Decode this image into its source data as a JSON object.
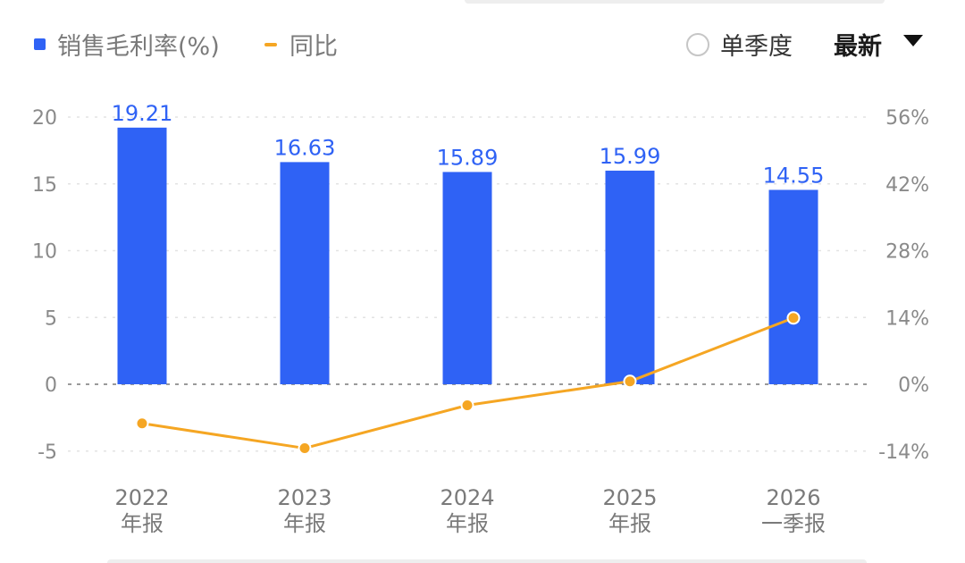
{
  "legend": {
    "bar_label": "销售毛利率(%)",
    "line_label": "同比"
  },
  "controls": {
    "radio_label": "单季度",
    "period_label": "最新"
  },
  "colors": {
    "bar": "#2f62f5",
    "line": "#f5a623",
    "axis_text": "#8a8a8a"
  },
  "chart_data": {
    "type": "bar",
    "categories": [
      [
        "2022",
        "年报"
      ],
      [
        "2023",
        "年报"
      ],
      [
        "2024",
        "年报"
      ],
      [
        "2025",
        "年报"
      ],
      [
        "2026",
        "一季报"
      ]
    ],
    "series": [
      {
        "name": "销售毛利率(%)",
        "type": "bar",
        "axis": "left",
        "values": [
          19.21,
          16.63,
          15.89,
          15.99,
          14.55
        ]
      },
      {
        "name": "同比",
        "type": "line",
        "axis": "right",
        "values": [
          -8.2,
          -13.4,
          -4.4,
          0.6,
          13.9
        ]
      }
    ],
    "data_labels": [
      "19.21",
      "16.63",
      "15.89",
      "15.99",
      "14.55"
    ],
    "left_axis": {
      "ticks": [
        20,
        15,
        10,
        5,
        0,
        -5
      ],
      "tick_labels": [
        "20",
        "15",
        "10",
        "5",
        "0",
        "-5"
      ],
      "range": [
        -5,
        20
      ]
    },
    "right_axis": {
      "ticks": [
        56,
        42,
        28,
        14,
        0,
        -14
      ],
      "tick_labels": [
        "56%",
        "42%",
        "28%",
        "14%",
        "0%",
        "-14%"
      ],
      "range": [
        -14,
        56
      ]
    },
    "grid": true,
    "legend_position": "top-left"
  }
}
